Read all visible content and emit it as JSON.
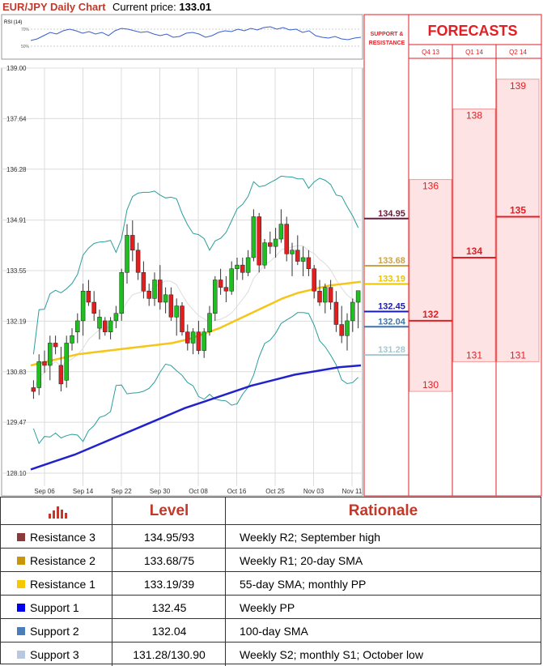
{
  "header": {
    "title": "EUR/JPY Daily Chart",
    "price_label": "Current price:",
    "price_value": "133.01"
  },
  "rsi": {
    "label": "RSI (14)",
    "ticks": [
      "70%",
      "50%"
    ]
  },
  "panel": {
    "support_resistance_label": [
      "SUPPORT &",
      "RESISTANCE"
    ],
    "forecasts_title": "FORECASTS"
  },
  "colors": {
    "accent": "#e31e24",
    "bull": "#1fbf1f",
    "bear": "#e02020",
    "sma55": "#f5c518",
    "sma100": "#2222cc",
    "bollinger": "#2a9d9d"
  },
  "chart_data": {
    "type": "candlestick",
    "title": "EUR/JPY Daily Chart",
    "y_ticks": [
      "139.00",
      "137.64",
      "136.28",
      "134.91",
      "133.55",
      "132.19",
      "130.83",
      "129.47",
      "128.10"
    ],
    "ylim": [
      128.1,
      139.0
    ],
    "x_ticks": [
      "Sep 06",
      "Sep 14",
      "Sep 22",
      "Sep 30",
      "Oct 08",
      "Oct 16",
      "Oct 25",
      "Nov 03",
      "Nov 11"
    ],
    "candles_ohlc": [
      [
        130.4,
        130.6,
        130.1,
        130.3
      ],
      [
        130.4,
        131.3,
        130.2,
        131.1
      ],
      [
        131.1,
        131.4,
        130.8,
        131.0
      ],
      [
        131.0,
        131.8,
        130.6,
        131.6
      ],
      [
        131.6,
        131.8,
        131.3,
        131.5
      ],
      [
        131.0,
        131.5,
        130.3,
        130.5
      ],
      [
        130.6,
        131.8,
        130.4,
        131.6
      ],
      [
        131.6,
        132.0,
        131.4,
        131.8
      ],
      [
        131.9,
        132.4,
        131.6,
        132.2
      ],
      [
        132.2,
        133.2,
        131.8,
        133.0
      ],
      [
        133.0,
        133.3,
        132.6,
        132.7
      ],
      [
        132.7,
        133.0,
        132.2,
        132.4
      ],
      [
        132.0,
        132.5,
        131.7,
        132.3
      ],
      [
        132.2,
        132.3,
        131.8,
        131.9
      ],
      [
        131.9,
        132.3,
        131.7,
        132.2
      ],
      [
        132.2,
        132.6,
        132.0,
        132.4
      ],
      [
        132.4,
        133.6,
        132.2,
        133.5
      ],
      [
        133.5,
        134.8,
        133.2,
        134.5
      ],
      [
        134.5,
        134.9,
        133.8,
        134.1
      ],
      [
        134.1,
        134.3,
        133.3,
        133.5
      ],
      [
        133.5,
        133.8,
        132.8,
        133.0
      ],
      [
        133.0,
        133.2,
        132.6,
        132.8
      ],
      [
        132.8,
        133.5,
        132.6,
        133.3
      ],
      [
        133.3,
        133.7,
        132.5,
        132.7
      ],
      [
        132.7,
        133.1,
        132.4,
        132.9
      ],
      [
        132.9,
        133.1,
        132.2,
        132.3
      ],
      [
        132.3,
        132.8,
        131.8,
        132.6
      ],
      [
        132.6,
        132.7,
        131.8,
        131.9
      ],
      [
        131.9,
        132.1,
        131.4,
        131.6
      ],
      [
        131.6,
        132.0,
        131.3,
        131.9
      ],
      [
        131.9,
        132.2,
        131.3,
        131.4
      ],
      [
        131.4,
        132.0,
        131.2,
        131.9
      ],
      [
        131.9,
        132.6,
        131.8,
        132.4
      ],
      [
        132.4,
        133.4,
        132.2,
        133.3
      ],
      [
        133.3,
        133.6,
        132.9,
        133.1
      ],
      [
        133.1,
        133.4,
        132.7,
        133.0
      ],
      [
        133.0,
        133.8,
        132.9,
        133.6
      ],
      [
        133.6,
        133.9,
        133.3,
        133.7
      ],
      [
        133.7,
        133.9,
        133.3,
        133.5
      ],
      [
        133.5,
        134.1,
        133.4,
        133.9
      ],
      [
        133.9,
        135.2,
        133.8,
        135.0
      ],
      [
        135.0,
        135.1,
        133.5,
        133.7
      ],
      [
        133.7,
        134.4,
        133.6,
        134.3
      ],
      [
        134.3,
        134.6,
        134.0,
        134.2
      ],
      [
        134.2,
        134.7,
        133.9,
        134.4
      ],
      [
        134.4,
        135.2,
        134.3,
        134.8
      ],
      [
        134.8,
        135.0,
        133.8,
        134.0
      ],
      [
        134.0,
        134.3,
        133.4,
        134.1
      ],
      [
        134.1,
        134.5,
        133.7,
        133.8
      ],
      [
        133.8,
        134.2,
        133.4,
        133.9
      ],
      [
        133.9,
        134.1,
        133.4,
        133.6
      ],
      [
        133.6,
        133.7,
        132.8,
        133.0
      ],
      [
        133.0,
        133.3,
        132.6,
        132.7
      ],
      [
        132.7,
        133.2,
        132.4,
        133.1
      ],
      [
        133.1,
        133.3,
        132.5,
        132.7
      ],
      [
        132.7,
        133.0,
        131.9,
        132.1
      ],
      [
        132.1,
        132.6,
        131.6,
        131.8
      ],
      [
        131.8,
        132.4,
        131.4,
        132.2
      ],
      [
        132.2,
        132.8,
        131.9,
        132.7
      ],
      [
        132.7,
        133.0,
        132.0,
        133.01
      ]
    ],
    "series": [
      {
        "name": "55-day SMA",
        "values": [
          131.0,
          131.1,
          131.2,
          131.3,
          131.35,
          131.4,
          131.45,
          131.5,
          131.55,
          131.6,
          131.7,
          131.85,
          132.0,
          132.2,
          132.4,
          132.6,
          132.8,
          132.95,
          133.05,
          133.15,
          133.2,
          133.25
        ]
      },
      {
        "name": "100-day SMA",
        "values": [
          128.2,
          128.4,
          128.6,
          128.85,
          129.1,
          129.35,
          129.6,
          129.85,
          130.05,
          130.25,
          130.45,
          130.6,
          130.75,
          130.85,
          130.95,
          131.0
        ]
      }
    ],
    "levels": [
      {
        "label": "134.95",
        "value": 134.95,
        "color": "#6b1a3a"
      },
      {
        "label": "133.68",
        "value": 133.68,
        "color": "#c9a24a"
      },
      {
        "label": "133.19",
        "value": 133.19,
        "color": "#e8c400"
      },
      {
        "label": "132.45",
        "value": 132.45,
        "color": "#1a1ab0"
      },
      {
        "label": "132.04",
        "value": 132.04,
        "color": "#3e74a8"
      },
      {
        "label": "131.28",
        "value": 131.28,
        "color": "#a9c6cf"
      }
    ],
    "forecasts": [
      {
        "period": "Q4 13",
        "high": "136",
        "high_value": 136.0,
        "median": "132",
        "median_value": 132.2,
        "low": "130",
        "low_value": 130.3
      },
      {
        "period": "Q1 14",
        "high": "138",
        "high_value": 137.9,
        "median": "134",
        "median_value": 133.9,
        "low": "131",
        "low_value": 131.1
      },
      {
        "period": "Q2 14",
        "high": "139",
        "high_value": 138.7,
        "median": "135",
        "median_value": 135.0,
        "low": "131",
        "low_value": 131.1
      }
    ]
  },
  "table": {
    "icon": "bar-chart-icon",
    "headers": {
      "level": "Level",
      "rationale": "Rationale"
    },
    "rows": [
      {
        "name": "Resistance 3",
        "color": "#8b3a3a",
        "level": "134.95/93",
        "rationale": "Weekly R2; September high"
      },
      {
        "name": "Resistance 2",
        "color": "#c8960c",
        "level": "133.68/75",
        "rationale": "Weekly R1; 20-day SMA"
      },
      {
        "name": "Resistance 1",
        "color": "#f5c800",
        "level": "133.19/39",
        "rationale": "55-day SMA; monthly PP"
      },
      {
        "name": "Support 1",
        "color": "#0000ee",
        "level": "132.45",
        "rationale": "Weekly PP"
      },
      {
        "name": "Support 2",
        "color": "#4a7ebb",
        "level": "132.04",
        "rationale": "100-day SMA"
      },
      {
        "name": "Support 3",
        "color": "#b8c8e0",
        "level": "131.28/130.90",
        "rationale": "Weekly S2; monthly S1; October low"
      }
    ]
  }
}
